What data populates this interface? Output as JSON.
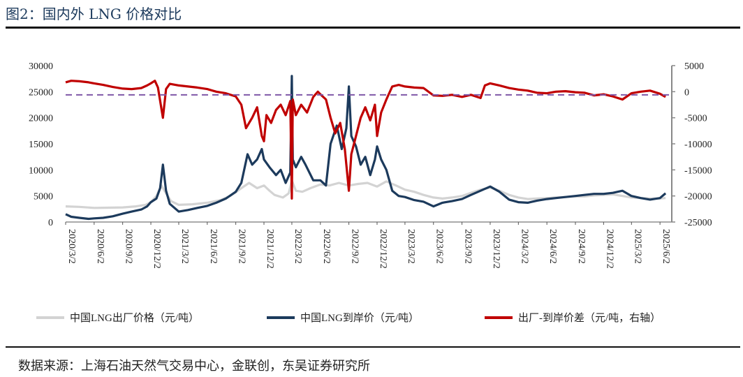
{
  "figure": {
    "title": "图2：国内外 LNG 价格对比",
    "source": "数据来源：上海石油天然气交易中心，金联创，东吴证券研究所"
  },
  "chart_data": {
    "type": "line",
    "x_ticks": [
      "2020/3/2",
      "2020/6/2",
      "2020/9/2",
      "2020/12/2",
      "2021/3/2",
      "2021/6/2",
      "2021/9/2",
      "2021/12/2",
      "2022/3/2",
      "2022/6/2",
      "2022/9/2",
      "2022/12/2",
      "2023/3/2",
      "2023/6/2",
      "2023/9/2",
      "2023/12/2",
      "2024/3/2",
      "2024/6/2",
      "2024/9/2",
      "2024/12/2",
      "2025/3/2",
      "2025/6/2"
    ],
    "y_left": {
      "min": 0,
      "max": 30000,
      "ticks": [
        0,
        5000,
        10000,
        15000,
        20000,
        25000,
        30000
      ]
    },
    "y_right": {
      "min": -25000,
      "max": 5000,
      "ticks": [
        5000,
        0,
        -5000,
        -10000,
        -15000,
        -20000,
        -25000
      ]
    },
    "reference_line": {
      "axis": "right",
      "value": -600,
      "color": "#7e57a8",
      "style": "dashed"
    },
    "series": [
      {
        "name": "中国LNG出厂价格（元/吨）",
        "axis": "left",
        "color": "#d3d3d3",
        "points": [
          [
            "2020/3/2",
            3000
          ],
          [
            "2020/4/15",
            2900
          ],
          [
            "2020/6/2",
            2700
          ],
          [
            "2020/7/15",
            2750
          ],
          [
            "2020/9/2",
            2800
          ],
          [
            "2020/10/15",
            3000
          ],
          [
            "2020/11/15",
            3300
          ],
          [
            "2020/12/2",
            3800
          ],
          [
            "2020/12/20",
            5000
          ],
          [
            "2021/1/5",
            7000
          ],
          [
            "2021/1/20",
            5500
          ],
          [
            "2021/2/5",
            4000
          ],
          [
            "2021/3/2",
            3300
          ],
          [
            "2021/4/15",
            3400
          ],
          [
            "2021/6/2",
            3700
          ],
          [
            "2021/7/15",
            4200
          ],
          [
            "2021/8/15",
            5000
          ],
          [
            "2021/9/2",
            5700
          ],
          [
            "2021/9/20",
            6500
          ],
          [
            "2021/10/15",
            7500
          ],
          [
            "2021/11/10",
            6500
          ],
          [
            "2021/12/2",
            7000
          ],
          [
            "2021/12/20",
            6000
          ],
          [
            "2022/1/5",
            5200
          ],
          [
            "2022/2/1",
            4700
          ],
          [
            "2022/2/20",
            5500
          ],
          [
            "2022/3/2",
            8000
          ],
          [
            "2022/3/15",
            6000
          ],
          [
            "2022/4/5",
            5800
          ],
          [
            "2022/5/1",
            6500
          ],
          [
            "2022/6/2",
            7200
          ],
          [
            "2022/7/1",
            7000
          ],
          [
            "2022/8/1",
            7500
          ],
          [
            "2022/9/2",
            7000
          ],
          [
            "2022/10/1",
            7300
          ],
          [
            "2022/11/1",
            7500
          ],
          [
            "2022/12/2",
            6800
          ],
          [
            "2023/1/1",
            7800
          ],
          [
            "2023/2/1",
            7000
          ],
          [
            "2023/3/2",
            6200
          ],
          [
            "2023/4/1",
            5800
          ],
          [
            "2023/5/1",
            5200
          ],
          [
            "2023/6/2",
            4700
          ],
          [
            "2023/7/1",
            4500
          ],
          [
            "2023/8/1",
            4700
          ],
          [
            "2023/9/2",
            5000
          ],
          [
            "2023/10/1",
            5600
          ],
          [
            "2023/11/1",
            6200
          ],
          [
            "2023/12/2",
            6600
          ],
          [
            "2024/1/1",
            6000
          ],
          [
            "2024/2/1",
            5200
          ],
          [
            "2024/3/2",
            4700
          ],
          [
            "2024/4/1",
            4400
          ],
          [
            "2024/5/1",
            4500
          ],
          [
            "2024/6/2",
            4600
          ],
          [
            "2024/7/1",
            4700
          ],
          [
            "2024/8/1",
            4800
          ],
          [
            "2024/9/2",
            4900
          ],
          [
            "2024/10/1",
            4900
          ],
          [
            "2024/11/1",
            5100
          ],
          [
            "2024/12/2",
            5200
          ],
          [
            "2025/1/1",
            5300
          ],
          [
            "2025/2/1",
            5000
          ],
          [
            "2025/3/2",
            4700
          ],
          [
            "2025/4/1",
            4600
          ],
          [
            "2025/5/1",
            4500
          ],
          [
            "2025/6/2",
            4500
          ],
          [
            "2025/6/20",
            4600
          ]
        ]
      },
      {
        "name": "中国LNG到岸价（元/吨）",
        "axis": "left",
        "color": "#1c3a5c",
        "points": [
          [
            "2020/3/2",
            1500
          ],
          [
            "2020/3/20",
            1000
          ],
          [
            "2020/4/15",
            800
          ],
          [
            "2020/5/15",
            600
          ],
          [
            "2020/6/2",
            700
          ],
          [
            "2020/7/1",
            800
          ],
          [
            "2020/8/1",
            1100
          ],
          [
            "2020/9/2",
            1600
          ],
          [
            "2020/10/1",
            2000
          ],
          [
            "2020/11/1",
            2400
          ],
          [
            "2020/11/20",
            3000
          ],
          [
            "2020/12/2",
            3800
          ],
          [
            "2020/12/20",
            4500
          ],
          [
            "2021/1/1",
            6500
          ],
          [
            "2021/1/10",
            11000
          ],
          [
            "2021/1/20",
            6000
          ],
          [
            "2021/2/1",
            3500
          ],
          [
            "2021/3/2",
            2000
          ],
          [
            "2021/4/1",
            2300
          ],
          [
            "2021/5/1",
            2700
          ],
          [
            "2021/6/2",
            3100
          ],
          [
            "2021/7/1",
            3700
          ],
          [
            "2021/8/1",
            4500
          ],
          [
            "2021/9/2",
            5800
          ],
          [
            "2021/9/20",
            7500
          ],
          [
            "2021/10/10",
            13000
          ],
          [
            "2021/10/25",
            11000
          ],
          [
            "2021/11/10",
            12000
          ],
          [
            "2021/11/25",
            14000
          ],
          [
            "2021/12/2",
            12000
          ],
          [
            "2021/12/20",
            10500
          ],
          [
            "2022/1/10",
            9000
          ],
          [
            "2022/1/25",
            10000
          ],
          [
            "2022/2/10",
            7500
          ],
          [
            "2022/2/25",
            9500
          ],
          [
            "2022/3/2",
            28000
          ],
          [
            "2022/3/5",
            12000
          ],
          [
            "2022/3/15",
            10500
          ],
          [
            "2022/4/1",
            12500
          ],
          [
            "2022/4/15",
            11000
          ],
          [
            "2022/5/10",
            8000
          ],
          [
            "2022/6/2",
            8000
          ],
          [
            "2022/6/20",
            7000
          ],
          [
            "2022/7/5",
            15000
          ],
          [
            "2022/7/25",
            18500
          ],
          [
            "2022/8/10",
            14000
          ],
          [
            "2022/8/25",
            18000
          ],
          [
            "2022/9/2",
            26000
          ],
          [
            "2022/9/10",
            16500
          ],
          [
            "2022/9/25",
            14500
          ],
          [
            "2022/10/10",
            11000
          ],
          [
            "2022/10/25",
            12500
          ],
          [
            "2022/11/10",
            9000
          ],
          [
            "2022/11/25",
            12000
          ],
          [
            "2022/12/2",
            14500
          ],
          [
            "2022/12/15",
            12000
          ],
          [
            "2023/1/1",
            10000
          ],
          [
            "2023/1/20",
            6000
          ],
          [
            "2023/2/10",
            5000
          ],
          [
            "2023/3/2",
            4800
          ],
          [
            "2023/4/1",
            4200
          ],
          [
            "2023/5/1",
            3900
          ],
          [
            "2023/6/2",
            3000
          ],
          [
            "2023/7/1",
            3700
          ],
          [
            "2023/8/1",
            4000
          ],
          [
            "2023/9/2",
            4400
          ],
          [
            "2023/10/1",
            5200
          ],
          [
            "2023/11/1",
            6000
          ],
          [
            "2023/12/2",
            6800
          ],
          [
            "2024/1/1",
            5800
          ],
          [
            "2024/2/1",
            4300
          ],
          [
            "2024/3/2",
            3800
          ],
          [
            "2024/4/1",
            3700
          ],
          [
            "2024/5/1",
            4100
          ],
          [
            "2024/6/2",
            4400
          ],
          [
            "2024/7/1",
            4600
          ],
          [
            "2024/8/1",
            4800
          ],
          [
            "2024/9/2",
            5000
          ],
          [
            "2024/10/1",
            5200
          ],
          [
            "2024/11/1",
            5400
          ],
          [
            "2024/12/2",
            5400
          ],
          [
            "2025/1/1",
            5600
          ],
          [
            "2025/2/1",
            6000
          ],
          [
            "2025/3/2",
            5000
          ],
          [
            "2025/4/1",
            4600
          ],
          [
            "2025/5/1",
            4300
          ],
          [
            "2025/6/2",
            4600
          ],
          [
            "2025/6/20",
            5500
          ]
        ]
      },
      {
        "name": "出厂-到岸价差（元/吨，右轴）",
        "axis": "right",
        "color": "#c00000",
        "points": [
          [
            "2020/3/2",
            1800
          ],
          [
            "2020/3/20",
            2100
          ],
          [
            "2020/4/15",
            2000
          ],
          [
            "2020/5/15",
            1800
          ],
          [
            "2020/6/2",
            1600
          ],
          [
            "2020/7/1",
            1300
          ],
          [
            "2020/8/1",
            900
          ],
          [
            "2020/9/2",
            600
          ],
          [
            "2020/10/1",
            500
          ],
          [
            "2020/11/1",
            700
          ],
          [
            "2020/11/20",
            1200
          ],
          [
            "2020/12/2",
            1600
          ],
          [
            "2020/12/15",
            2100
          ],
          [
            "2020/12/25",
            800
          ],
          [
            "2021/1/10",
            -5000
          ],
          [
            "2021/1/20",
            500
          ],
          [
            "2021/2/1",
            1500
          ],
          [
            "2021/3/2",
            1200
          ],
          [
            "2021/4/1",
            1000
          ],
          [
            "2021/5/1",
            800
          ],
          [
            "2021/6/2",
            500
          ],
          [
            "2021/7/1",
            0
          ],
          [
            "2021/8/1",
            -300
          ],
          [
            "2021/9/2",
            -900
          ],
          [
            "2021/9/20",
            -2500
          ],
          [
            "2021/10/5",
            -7000
          ],
          [
            "2021/10/25",
            -5000
          ],
          [
            "2021/11/10",
            -3000
          ],
          [
            "2021/11/25",
            -8500
          ],
          [
            "2021/12/2",
            -9500
          ],
          [
            "2021/12/10",
            -4500
          ],
          [
            "2021/12/25",
            -6000
          ],
          [
            "2022/1/10",
            -3500
          ],
          [
            "2022/1/25",
            -2500
          ],
          [
            "2022/2/10",
            -4500
          ],
          [
            "2022/2/25",
            -1800
          ],
          [
            "2022/3/2",
            -20500
          ],
          [
            "2022/3/5",
            -1500
          ],
          [
            "2022/3/15",
            -4500
          ],
          [
            "2022/4/1",
            -2500
          ],
          [
            "2022/4/20",
            -4000
          ],
          [
            "2022/5/10",
            -1000
          ],
          [
            "2022/5/25",
            0
          ],
          [
            "2022/6/2",
            -500
          ],
          [
            "2022/6/20",
            -1500
          ],
          [
            "2022/7/5",
            -5000
          ],
          [
            "2022/7/20",
            -8000
          ],
          [
            "2022/8/5",
            -6000
          ],
          [
            "2022/8/20",
            -11000
          ],
          [
            "2022/9/2",
            -19000
          ],
          [
            "2022/9/10",
            -12000
          ],
          [
            "2022/9/25",
            -8500
          ],
          [
            "2022/10/10",
            -5000
          ],
          [
            "2022/10/25",
            -3000
          ],
          [
            "2022/11/10",
            -5500
          ],
          [
            "2022/11/25",
            -2500
          ],
          [
            "2022/12/2",
            -8500
          ],
          [
            "2022/12/15",
            -4000
          ],
          [
            "2023/1/1",
            -1500
          ],
          [
            "2023/1/20",
            1000
          ],
          [
            "2023/2/10",
            1300
          ],
          [
            "2023/3/2",
            1000
          ],
          [
            "2023/4/1",
            800
          ],
          [
            "2023/5/1",
            700
          ],
          [
            "2023/6/2",
            -700
          ],
          [
            "2023/7/1",
            -800
          ],
          [
            "2023/8/1",
            -600
          ],
          [
            "2023/9/2",
            -1000
          ],
          [
            "2023/10/1",
            -600
          ],
          [
            "2023/11/1",
            -1200
          ],
          [
            "2023/11/15",
            1200
          ],
          [
            "2023/12/2",
            1600
          ],
          [
            "2024/1/1",
            1200
          ],
          [
            "2024/2/1",
            700
          ],
          [
            "2024/3/2",
            400
          ],
          [
            "2024/4/1",
            200
          ],
          [
            "2024/5/1",
            -200
          ],
          [
            "2024/6/2",
            -300
          ],
          [
            "2024/7/1",
            0
          ],
          [
            "2024/8/1",
            100
          ],
          [
            "2024/9/2",
            -100
          ],
          [
            "2024/10/1",
            -200
          ],
          [
            "2024/11/1",
            -700
          ],
          [
            "2024/12/2",
            -500
          ],
          [
            "2025/1/1",
            -900
          ],
          [
            "2025/2/1",
            -1500
          ],
          [
            "2025/3/2",
            -300
          ],
          [
            "2025/4/1",
            0
          ],
          [
            "2025/5/1",
            200
          ],
          [
            "2025/6/2",
            -400
          ],
          [
            "2025/6/20",
            -1000
          ]
        ]
      }
    ]
  }
}
